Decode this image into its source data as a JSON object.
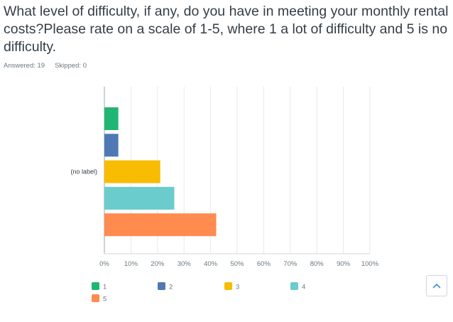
{
  "question": {
    "text": "What level of difficulty, if any, do you have in meeting your monthly rental costs?Please rate on a scale of 1-5, where 1 a lot of difficulty and 5 is no difficulty."
  },
  "stats": {
    "answered": "Answered: 19",
    "skipped": "Skipped: 0"
  },
  "chart_data": {
    "type": "bar",
    "orientation": "horizontal",
    "categories": [
      "(no label)"
    ],
    "series": [
      {
        "name": "1",
        "values": [
          5.26
        ],
        "color": "#21b573"
      },
      {
        "name": "2",
        "values": [
          5.26
        ],
        "color": "#4e79b5"
      },
      {
        "name": "3",
        "values": [
          21.05
        ],
        "color": "#f8bc00"
      },
      {
        "name": "4",
        "values": [
          26.32
        ],
        "color": "#6acccc"
      },
      {
        "name": "5",
        "values": [
          42.11
        ],
        "color": "#ff8b4f"
      }
    ],
    "xlim": [
      0,
      100
    ],
    "xticks": [
      "0%",
      "10%",
      "20%",
      "30%",
      "40%",
      "50%",
      "60%",
      "70%",
      "80%",
      "90%",
      "100%"
    ],
    "grid": true,
    "legend_position": "bottom"
  },
  "icons": {
    "scroll_top": "chevron-up-icon"
  }
}
